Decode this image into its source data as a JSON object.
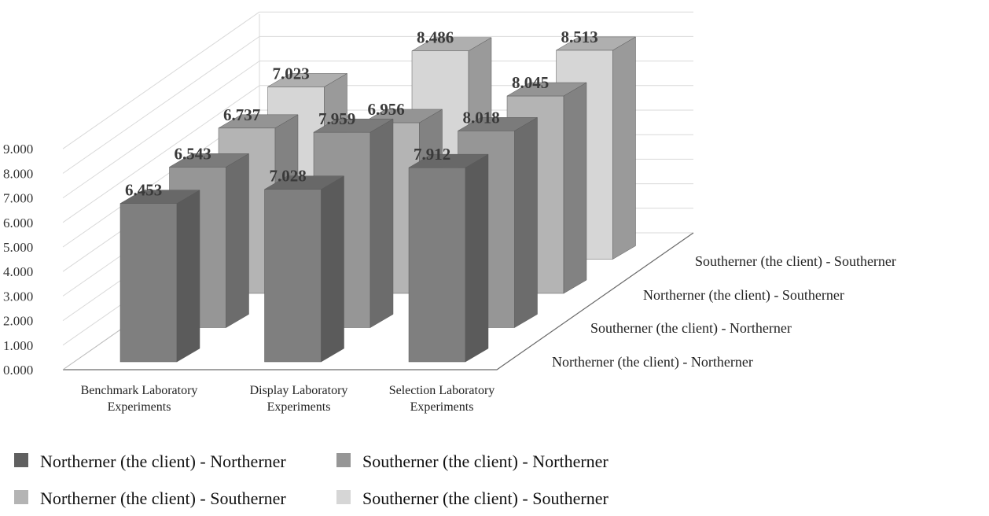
{
  "chart_data": {
    "type": "bar",
    "title": "",
    "xlabel": "",
    "ylabel": "",
    "ylim": [
      0,
      9
    ],
    "yticks": [
      "0.000",
      "1.000",
      "2.000",
      "3.000",
      "4.000",
      "5.000",
      "6.000",
      "7.000",
      "8.000",
      "9.000"
    ],
    "grid": true,
    "categories": [
      "Benchmark Laboratory Experiments",
      "Display Laboratory Experiments",
      "Selection Laboratory Experiments"
    ],
    "category_lines": [
      [
        "Benchmark Laboratory",
        "Experiments"
      ],
      [
        "Display Laboratory",
        "Experiments"
      ],
      [
        "Selection Laboratory",
        "Experiments"
      ]
    ],
    "series": [
      {
        "name": "Northerner (the client) - Northerner",
        "values": [
          6.453,
          7.028,
          7.912
        ],
        "labels": [
          "6.453",
          "7.028",
          "7.912"
        ],
        "color": "#7f7f7f"
      },
      {
        "name": "Southerner (the client) - Northerner",
        "values": [
          6.543,
          7.959,
          8.018
        ],
        "labels": [
          "6.543",
          "7.959",
          "8.018"
        ],
        "color": "#969696"
      },
      {
        "name": "Northerner (the client) - Southerner",
        "values": [
          6.737,
          6.956,
          8.045
        ],
        "labels": [
          "6.737",
          "6.956",
          "8.045"
        ],
        "color": "#b4b4b4"
      },
      {
        "name": "Southerner (the client) - Southerner",
        "values": [
          7.023,
          8.486,
          8.513
        ],
        "labels": [
          "7.023",
          "8.486",
          "8.513"
        ],
        "color": "#d6d6d6"
      }
    ],
    "legend": {
      "placement": "bottom",
      "swatch_colors": [
        "#606060",
        "#969696",
        "#b4b4b4",
        "#d6d6d6"
      ]
    }
  }
}
